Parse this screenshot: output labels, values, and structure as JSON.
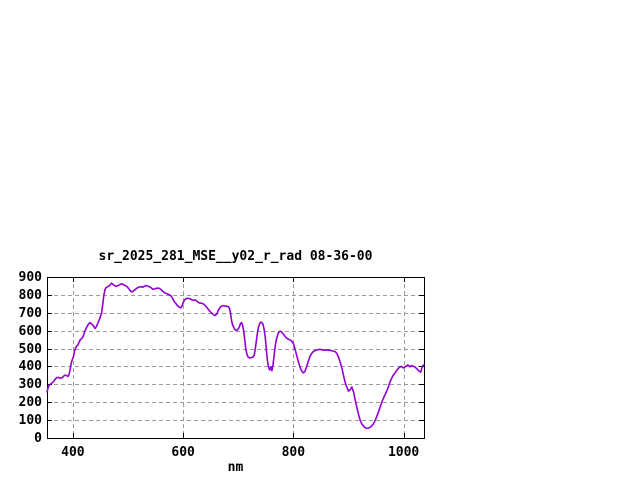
{
  "window": {
    "background": "#ffffff"
  },
  "chart_data": {
    "type": "line",
    "title": "sr_2025_281_MSE__y02_r_rad 08-36-00",
    "xlabel": "nm",
    "ylabel": "",
    "xlim": [
      353,
      1037
    ],
    "ylim": [
      0,
      900
    ],
    "x_ticks": [
      400,
      600,
      800,
      1000
    ],
    "y_ticks": [
      0,
      100,
      200,
      300,
      400,
      500,
      600,
      700,
      800,
      900
    ],
    "grid": true,
    "legend": "none",
    "line_color": "#9400D3",
    "grid_color": "#9a9a9a",
    "border_color": "#000000",
    "series": [
      {
        "points": [
          [
            353,
            259
          ],
          [
            356,
            291
          ],
          [
            359,
            300
          ],
          [
            362,
            308
          ],
          [
            365,
            315
          ],
          [
            368,
            330
          ],
          [
            371,
            338
          ],
          [
            374,
            339
          ],
          [
            377,
            334
          ],
          [
            380,
            336
          ],
          [
            383,
            345
          ],
          [
            386,
            352
          ],
          [
            389,
            348
          ],
          [
            391,
            344
          ],
          [
            393,
            355
          ],
          [
            395,
            383
          ],
          [
            397,
            420
          ],
          [
            399,
            440
          ],
          [
            401,
            455
          ],
          [
            403,
            488
          ],
          [
            405,
            505
          ],
          [
            407,
            515
          ],
          [
            409,
            520
          ],
          [
            411,
            535
          ],
          [
            413,
            548
          ],
          [
            415,
            554
          ],
          [
            417,
            560
          ],
          [
            419,
            572
          ],
          [
            422,
            600
          ],
          [
            425,
            620
          ],
          [
            428,
            635
          ],
          [
            431,
            645
          ],
          [
            434,
            638
          ],
          [
            437,
            628
          ],
          [
            440,
            612
          ],
          [
            443,
            625
          ],
          [
            446,
            648
          ],
          [
            449,
            670
          ],
          [
            452,
            700
          ],
          [
            454,
            745
          ],
          [
            456,
            795
          ],
          [
            458,
            828
          ],
          [
            460,
            840
          ],
          [
            463,
            846
          ],
          [
            466,
            851
          ],
          [
            468,
            858
          ],
          [
            470,
            866
          ],
          [
            473,
            858
          ],
          [
            476,
            851
          ],
          [
            479,
            848
          ],
          [
            482,
            852
          ],
          [
            485,
            857
          ],
          [
            488,
            862
          ],
          [
            491,
            858
          ],
          [
            494,
            853
          ],
          [
            497,
            849
          ],
          [
            500,
            840
          ],
          [
            503,
            828
          ],
          [
            506,
            817
          ],
          [
            509,
            820
          ],
          [
            512,
            827
          ],
          [
            515,
            835
          ],
          [
            518,
            841
          ],
          [
            521,
            844
          ],
          [
            524,
            846
          ],
          [
            527,
            843
          ],
          [
            530,
            849
          ],
          [
            533,
            852
          ],
          [
            536,
            849
          ],
          [
            539,
            846
          ],
          [
            542,
            839
          ],
          [
            545,
            831
          ],
          [
            548,
            833
          ],
          [
            551,
            837
          ],
          [
            554,
            838
          ],
          [
            557,
            836
          ],
          [
            560,
            829
          ],
          [
            563,
            820
          ],
          [
            566,
            813
          ],
          [
            569,
            808
          ],
          [
            572,
            805
          ],
          [
            575,
            800
          ],
          [
            578,
            795
          ],
          [
            581,
            780
          ],
          [
            584,
            762
          ],
          [
            587,
            750
          ],
          [
            590,
            739
          ],
          [
            593,
            731
          ],
          [
            596,
            727
          ],
          [
            598,
            738
          ],
          [
            600,
            755
          ],
          [
            602,
            768
          ],
          [
            604,
            776
          ],
          [
            607,
            781
          ],
          [
            610,
            780
          ],
          [
            613,
            778
          ],
          [
            616,
            772
          ],
          [
            619,
            770
          ],
          [
            622,
            772
          ],
          [
            625,
            764
          ],
          [
            628,
            757
          ],
          [
            631,
            754
          ],
          [
            634,
            753
          ],
          [
            637,
            749
          ],
          [
            640,
            740
          ],
          [
            643,
            730
          ],
          [
            646,
            718
          ],
          [
            649,
            707
          ],
          [
            652,
            697
          ],
          [
            655,
            690
          ],
          [
            658,
            684
          ],
          [
            661,
            693
          ],
          [
            664,
            715
          ],
          [
            667,
            730
          ],
          [
            670,
            738
          ],
          [
            673,
            740
          ],
          [
            676,
            738
          ],
          [
            679,
            736
          ],
          [
            682,
            734
          ],
          [
            684,
            726
          ],
          [
            686,
            700
          ],
          [
            688,
            655
          ],
          [
            690,
            630
          ],
          [
            692,
            618
          ],
          [
            694,
            606
          ],
          [
            696,
            601
          ],
          [
            698,
            603
          ],
          [
            700,
            610
          ],
          [
            702,
            622
          ],
          [
            704,
            640
          ],
          [
            706,
            645
          ],
          [
            708,
            628
          ],
          [
            710,
            595
          ],
          [
            712,
            540
          ],
          [
            714,
            490
          ],
          [
            716,
            465
          ],
          [
            718,
            452
          ],
          [
            721,
            448
          ],
          [
            724,
            450
          ],
          [
            727,
            453
          ],
          [
            729,
            462
          ],
          [
            731,
            500
          ],
          [
            733,
            545
          ],
          [
            735,
            590
          ],
          [
            737,
            622
          ],
          [
            739,
            642
          ],
          [
            741,
            648
          ],
          [
            743,
            644
          ],
          [
            745,
            635
          ],
          [
            747,
            605
          ],
          [
            749,
            560
          ],
          [
            751,
            490
          ],
          [
            753,
            430
          ],
          [
            755,
            395
          ],
          [
            757,
            380
          ],
          [
            759,
            398
          ],
          [
            761,
            376
          ],
          [
            763,
            408
          ],
          [
            765,
            460
          ],
          [
            767,
            512
          ],
          [
            769,
            548
          ],
          [
            771,
            572
          ],
          [
            773,
            590
          ],
          [
            776,
            597
          ],
          [
            779,
            592
          ],
          [
            782,
            580
          ],
          [
            785,
            568
          ],
          [
            788,
            558
          ],
          [
            791,
            552
          ],
          [
            794,
            548
          ],
          [
            797,
            542
          ],
          [
            800,
            528
          ],
          [
            803,
            498
          ],
          [
            806,
            462
          ],
          [
            809,
            428
          ],
          [
            812,
            396
          ],
          [
            815,
            375
          ],
          [
            818,
            364
          ],
          [
            821,
            372
          ],
          [
            824,
            398
          ],
          [
            827,
            428
          ],
          [
            830,
            455
          ],
          [
            833,
            472
          ],
          [
            836,
            483
          ],
          [
            839,
            488
          ],
          [
            842,
            492
          ],
          [
            845,
            494
          ],
          [
            848,
            495
          ],
          [
            852,
            493
          ],
          [
            856,
            491
          ],
          [
            860,
            493
          ],
          [
            864,
            490
          ],
          [
            868,
            489
          ],
          [
            872,
            486
          ],
          [
            876,
            483
          ],
          [
            879,
            472
          ],
          [
            882,
            450
          ],
          [
            885,
            424
          ],
          [
            888,
            390
          ],
          [
            891,
            350
          ],
          [
            894,
            310
          ],
          [
            897,
            285
          ],
          [
            900,
            262
          ],
          [
            903,
            270
          ],
          [
            906,
            285
          ],
          [
            909,
            258
          ],
          [
            912,
            215
          ],
          [
            915,
            172
          ],
          [
            918,
            135
          ],
          [
            921,
            100
          ],
          [
            924,
            80
          ],
          [
            927,
            67
          ],
          [
            930,
            58
          ],
          [
            933,
            54
          ],
          [
            936,
            55
          ],
          [
            939,
            60
          ],
          [
            942,
            67
          ],
          [
            945,
            78
          ],
          [
            948,
            95
          ],
          [
            951,
            118
          ],
          [
            954,
            142
          ],
          [
            957,
            170
          ],
          [
            960,
            196
          ],
          [
            963,
            220
          ],
          [
            966,
            240
          ],
          [
            969,
            260
          ],
          [
            972,
            283
          ],
          [
            975,
            310
          ],
          [
            978,
            332
          ],
          [
            981,
            350
          ],
          [
            984,
            362
          ],
          [
            987,
            375
          ],
          [
            990,
            388
          ],
          [
            993,
            396
          ],
          [
            996,
            400
          ],
          [
            999,
            392
          ],
          [
            1002,
            396
          ],
          [
            1005,
            403
          ],
          [
            1008,
            408
          ],
          [
            1011,
            398
          ],
          [
            1014,
            404
          ],
          [
            1017,
            402
          ],
          [
            1020,
            398
          ],
          [
            1023,
            390
          ],
          [
            1026,
            380
          ],
          [
            1029,
            372
          ],
          [
            1031,
            368
          ],
          [
            1033,
            390
          ],
          [
            1035,
            405
          ],
          [
            1037,
            408
          ]
        ]
      }
    ]
  }
}
